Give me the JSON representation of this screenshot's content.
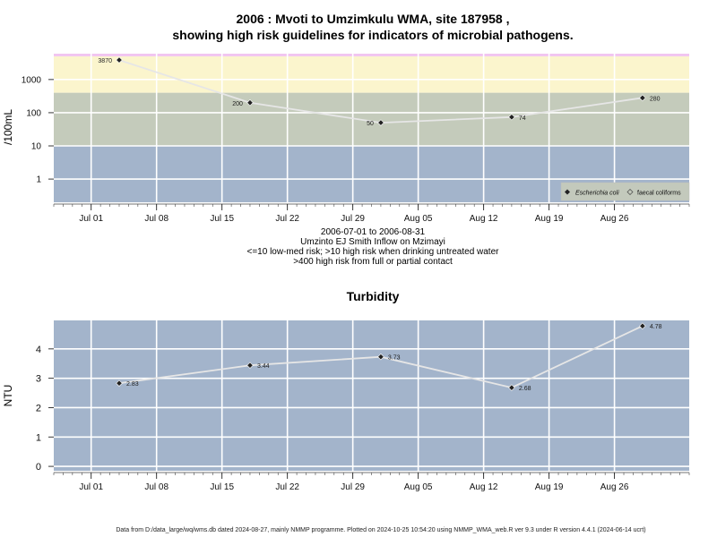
{
  "chart_data": [
    {
      "type": "line",
      "title_line1": "2006 : Mvoti to Umzimkulu WMA, site 187958 ,",
      "title_line2": "showing high risk guidelines for indicators of microbial pathogens.",
      "ylabel": "/100mL",
      "y_scale": "log",
      "y_ticks": [
        "1",
        "10",
        "100",
        "1000"
      ],
      "x_ticks": [
        "Jul 01",
        "Jul 08",
        "Jul 15",
        "Jul 22",
        "Jul 29",
        "Aug 05",
        "Aug 12",
        "Aug 19",
        "Aug 26"
      ],
      "x_tick_dates": [
        "2006-07-01",
        "2006-07-08",
        "2006-07-15",
        "2006-07-22",
        "2006-07-29",
        "2006-08-05",
        "2006-08-12",
        "2006-08-19",
        "2006-08-26"
      ],
      "xlim": [
        "2006-06-27",
        "2006-09-03"
      ],
      "ylim": [
        0.2,
        6000
      ],
      "risk_bands": [
        {
          "from": 0.2,
          "to": 10,
          "color": "#a3b4cb"
        },
        {
          "from": 10,
          "to": 400,
          "color": "#c4cbbb"
        },
        {
          "from": 400,
          "to": 5000,
          "color": "#fbf5cd"
        },
        {
          "from": 5000,
          "to": 6000,
          "color": "#f1c5f0"
        }
      ],
      "series": [
        {
          "name": "Escherichia coli",
          "x": [
            "2006-07-04",
            "2006-07-18",
            "2006-08-01",
            "2006-08-15",
            "2006-08-29"
          ],
          "values": [
            3870,
            200,
            50,
            74,
            280
          ],
          "labels": [
            "3870",
            "200",
            "50",
            "74",
            "280"
          ]
        },
        {
          "name": "faecal coliforms",
          "x": [],
          "values": []
        }
      ],
      "legend": {
        "position": "bottom-right",
        "entries": [
          "Escherichia coli",
          "faecal coliforms"
        ]
      },
      "grid": true,
      "subtitle_lines": [
        "2006-07-01 to 2006-08-31",
        "Umzinto EJ Smith Inflow on Mzimayi",
        "<=10 low-med risk; >10 high risk when drinking untreated water",
        ">400 high risk from full or partial contact"
      ]
    },
    {
      "type": "line",
      "title": "Turbidity",
      "ylabel": "NTU",
      "y_ticks": [
        "0",
        "1",
        "2",
        "3",
        "4"
      ],
      "x_ticks": [
        "Jul 01",
        "Jul 08",
        "Jul 15",
        "Jul 22",
        "Jul 29",
        "Aug 05",
        "Aug 12",
        "Aug 19",
        "Aug 26"
      ],
      "x_tick_dates": [
        "2006-07-01",
        "2006-07-08",
        "2006-07-15",
        "2006-07-22",
        "2006-07-29",
        "2006-08-05",
        "2006-08-12",
        "2006-08-19",
        "2006-08-26"
      ],
      "xlim": [
        "2006-06-27",
        "2006-09-03"
      ],
      "ylim": [
        -0.15,
        4.97
      ],
      "background": "#a3b4cb",
      "grid": true,
      "series": [
        {
          "x": [
            "2006-07-04",
            "2006-07-18",
            "2006-08-01",
            "2006-08-15",
            "2006-08-29"
          ],
          "values": [
            2.83,
            3.44,
            3.73,
            2.68,
            4.78
          ],
          "labels": [
            "2.83",
            "3.44",
            "3.73",
            "2.68",
            "4.78"
          ]
        }
      ]
    }
  ],
  "footer": "Data from D:/data_large/wq/wms.db dated 2024-08-27, mainly NMMP programme. Plotted on 2024-10-25 10:54:20 using NMMP_WMA_web.R ver 9.3 under R version 4.4.1 (2024-06-14 ucrt)"
}
